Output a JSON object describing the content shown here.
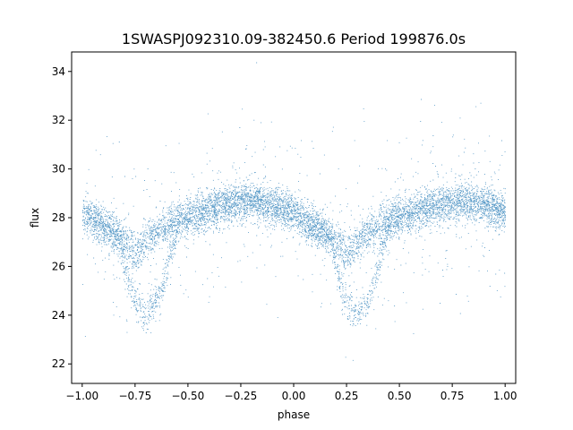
{
  "chart_data": {
    "type": "scatter",
    "title": "1SWASPJ092310.09-382450.6 Period 199876.0s",
    "xlabel": "phase",
    "ylabel": "flux",
    "xlim": [
      -1.05,
      1.05
    ],
    "ylim": [
      21.2,
      34.8
    ],
    "xticks": [
      -1.0,
      -0.75,
      -0.5,
      -0.25,
      0.0,
      0.25,
      0.5,
      0.75,
      1.0
    ],
    "xtick_labels": [
      "−1.00",
      "−0.75",
      "−0.50",
      "−0.25",
      "0.00",
      "0.25",
      "0.50",
      "0.75",
      "1.00"
    ],
    "yticks": [
      22,
      24,
      26,
      28,
      30,
      32,
      34
    ],
    "ytick_labels": [
      "22",
      "24",
      "26",
      "28",
      "30",
      "32",
      "34"
    ],
    "grid": false,
    "marker_color": "#1f77b4",
    "series": [
      {
        "phase_profile": {
          "phase": [
            0.0,
            0.05,
            0.1,
            0.15,
            0.2,
            0.25,
            0.28,
            0.3,
            0.32,
            0.35,
            0.4,
            0.45,
            0.5,
            0.55,
            0.6,
            0.7,
            0.8,
            0.9,
            1.0
          ],
          "flux": [
            28.2,
            27.9,
            27.6,
            27.4,
            27.0,
            26.5,
            26.8,
            27.0,
            27.2,
            27.4,
            27.7,
            27.9,
            28.0,
            28.1,
            28.3,
            28.6,
            28.7,
            28.5,
            28.2
          ]
        },
        "lower_branch": {
          "phase": [
            0.18,
            0.2,
            0.22,
            0.25,
            0.28,
            0.3,
            0.32,
            0.35,
            0.38,
            0.4,
            0.42,
            0.45
          ],
          "flux": [
            27.0,
            26.0,
            25.2,
            24.5,
            24.1,
            24.0,
            24.2,
            24.6,
            25.3,
            26.0,
            26.8,
            27.5
          ]
        },
        "point_count": 9000
      }
    ]
  }
}
